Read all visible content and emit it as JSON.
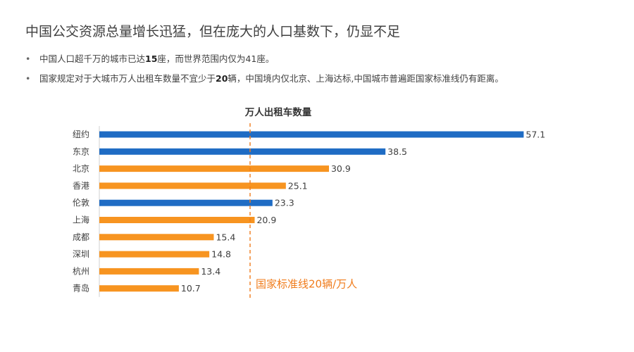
{
  "slide": {
    "title": "中国公交资源总量增长迅猛，但在庞大的人口基数下，仍显不足",
    "bullets": [
      {
        "bullet": "•",
        "before": "中国人口超千万的城市已达",
        "bold": "15",
        "after": "座，而世界范围内仅为41座。"
      },
      {
        "bullet": "•",
        "before": "国家规定对于大城市万人出租车数量不宜少于",
        "bold": "20",
        "after": "辆，中国境内仅北京、上海达标,中国城市普遍距国家标准线仍有距离。"
      }
    ]
  },
  "chart_data": {
    "type": "bar",
    "orientation": "horizontal",
    "title": "万人出租车数量",
    "categories": [
      "纽约",
      "东京",
      "北京",
      "香港",
      "伦敦",
      "上海",
      "成都",
      "深圳",
      "杭州",
      "青岛"
    ],
    "values": [
      57.1,
      38.5,
      30.9,
      25.1,
      23.3,
      20.9,
      15.4,
      14.8,
      13.4,
      10.7
    ],
    "groups": [
      "foreign",
      "foreign",
      "china",
      "china",
      "foreign",
      "china",
      "china",
      "china",
      "china",
      "china"
    ],
    "group_colors": {
      "foreign": "#1f6cc4",
      "china": "#f79420"
    },
    "reference_line": {
      "value": 20,
      "label": "国家标准线20辆/万人",
      "color": "#f07c1c",
      "style": "dashed"
    },
    "xlim": [
      0,
      60
    ],
    "xlabel": "",
    "ylabel": "",
    "grid": false
  }
}
